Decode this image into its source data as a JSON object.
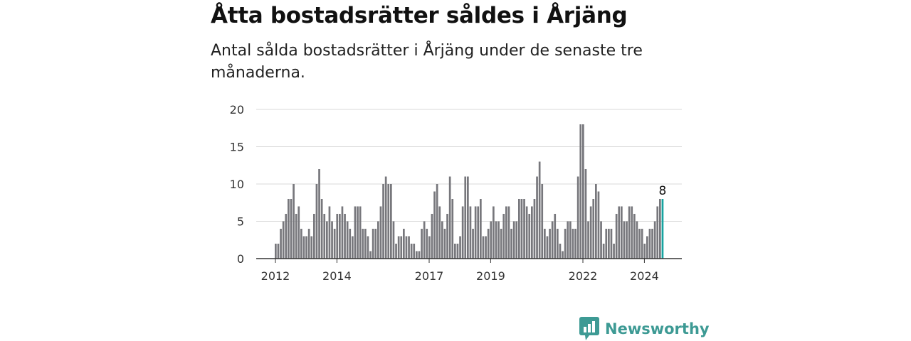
{
  "title": "Åtta bostadsrätter såldes i Årjäng",
  "subtitle": "Antal sålda bostadsrätter i Årjäng under de senaste tre månaderna.",
  "brand": {
    "name": "Newsworthy",
    "icon": "newsworthy-chart-icon",
    "color": "#3d9a94"
  },
  "colors": {
    "bar": "#77777c",
    "highlight": "#16a3a0",
    "grid": "#d9d9d9",
    "axis": "#333333"
  },
  "chart_data": {
    "type": "bar",
    "title": "Åtta bostadsrätter såldes i Årjäng",
    "xlabel": "",
    "ylabel": "",
    "ylim": [
      0,
      20
    ],
    "yticks": [
      0,
      5,
      10,
      15,
      20
    ],
    "grid": true,
    "xtick_labels": [
      "2012",
      "2014",
      "2017",
      "2019",
      "2022",
      "2024"
    ],
    "start": "2012-01",
    "frequency": "monthly",
    "highlight_last": true,
    "highlight_label": "8",
    "values": [
      2,
      2,
      4,
      5,
      6,
      8,
      8,
      10,
      6,
      7,
      4,
      3,
      3,
      4,
      3,
      6,
      10,
      12,
      8,
      6,
      5,
      7,
      5,
      4,
      6,
      6,
      7,
      6,
      5,
      4,
      3,
      7,
      7,
      7,
      4,
      4,
      3,
      1,
      4,
      4,
      5,
      7,
      10,
      11,
      10,
      10,
      5,
      2,
      3,
      3,
      4,
      3,
      3,
      2,
      2,
      1,
      1,
      4,
      5,
      4,
      3,
      6,
      9,
      10,
      7,
      5,
      4,
      6,
      11,
      8,
      2,
      2,
      3,
      7,
      11,
      11,
      7,
      4,
      7,
      7,
      8,
      3,
      3,
      4,
      5,
      7,
      5,
      5,
      4,
      6,
      7,
      7,
      4,
      5,
      5,
      8,
      8,
      8,
      7,
      6,
      7,
      8,
      11,
      13,
      10,
      4,
      3,
      4,
      5,
      6,
      4,
      2,
      1,
      4,
      5,
      5,
      4,
      4,
      11,
      18,
      18,
      12,
      5,
      7,
      8,
      10,
      9,
      5,
      2,
      4,
      4,
      4,
      2,
      6,
      7,
      7,
      5,
      5,
      7,
      7,
      6,
      5,
      4,
      4,
      2,
      3,
      4,
      4,
      5,
      7,
      8,
      8
    ]
  }
}
